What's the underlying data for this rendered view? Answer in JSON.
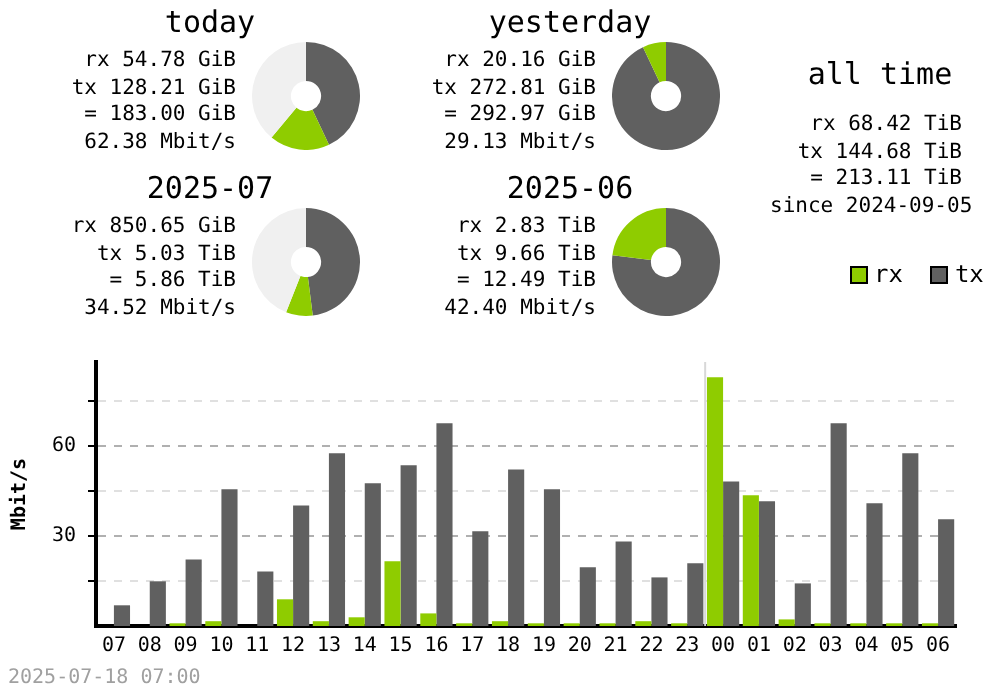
{
  "chart_data": [
    {
      "type": "donut",
      "title": "today",
      "categories": [
        null,
        null,
        null
      ],
      "values": [
        43,
        18,
        39
      ],
      "colors": [
        "#606060",
        "#8fcc00",
        "#f0f0f0"
      ],
      "annotations": [
        "rx 54.78 GiB",
        "tx 128.21 GiB",
        "= 183.00 GiB",
        "62.38 Mbit/s"
      ]
    },
    {
      "type": "donut",
      "title": "yesterday",
      "categories": [
        null,
        null
      ],
      "values": [
        93,
        7
      ],
      "colors": [
        "#606060",
        "#8fcc00"
      ],
      "annotations": [
        "rx 20.16 GiB",
        "tx 272.81 GiB",
        "= 292.97 GiB",
        "29.13 Mbit/s"
      ]
    },
    {
      "type": "other",
      "title": "all time",
      "annotations": [
        "rx 68.42 TiB",
        "tx 144.68 TiB",
        "= 213.11 TiB",
        "since 2024-09-05"
      ]
    },
    {
      "type": "donut",
      "title": "2025-07",
      "categories": [
        null,
        null,
        null
      ],
      "values": [
        48,
        8,
        44
      ],
      "colors": [
        "#606060",
        "#8fcc00",
        "#f0f0f0"
      ],
      "annotations": [
        "rx 850.65 GiB",
        "tx 5.03 TiB",
        "= 5.86 TiB",
        "34.52 Mbit/s"
      ]
    },
    {
      "type": "donut",
      "title": "2025-06",
      "categories": [
        null,
        null
      ],
      "values": [
        77,
        23
      ],
      "colors": [
        "#606060",
        "#8fcc00"
      ],
      "annotations": [
        "rx 2.83 TiB",
        "tx 9.66 TiB",
        "= 12.49 TiB",
        "42.40 Mbit/s"
      ]
    },
    {
      "type": "bar",
      "ylabel": "Mbit/s",
      "categories": [
        "07",
        "08",
        "09",
        "10",
        "11",
        "12",
        "13",
        "14",
        "15",
        "16",
        "17",
        "18",
        "19",
        "20",
        "21",
        "22",
        "23",
        "00",
        "01",
        "02",
        "03",
        "04",
        "05",
        "06"
      ],
      "series": [
        {
          "name": "rx",
          "color": "#8fcc00",
          "values": [
            0,
            0,
            0.9,
            1.6,
            0,
            8.9,
            1.6,
            2.9,
            21.6,
            4.2,
            0.9,
            1.6,
            0.9,
            0.9,
            0.9,
            1.6,
            0.9,
            82.9,
            43.6,
            2.2,
            0.9,
            0.9,
            0.9,
            0.9
          ]
        },
        {
          "name": "tx",
          "color": "#606060",
          "values": [
            6.9,
            14.9,
            22.2,
            45.6,
            18.2,
            40.2,
            57.6,
            47.6,
            53.6,
            67.6,
            31.6,
            52.2,
            45.6,
            19.6,
            28.2,
            16.2,
            20.9,
            48.2,
            41.6,
            14.2,
            67.6,
            40.9,
            57.6,
            35.6
          ]
        }
      ],
      "ylim": [
        0,
        88
      ],
      "yticks": [
        {
          "value": 0,
          "label": null
        },
        {
          "value": 15,
          "label": null
        },
        30,
        {
          "value": 45,
          "label": null
        },
        60,
        {
          "value": 75,
          "label": null
        }
      ],
      "grid": "y",
      "legend": "top right",
      "ref_lines": [
        {
          "axis": "x",
          "value": "00",
          "color": "#d8d8d8"
        }
      ],
      "annotations": [
        "2025-07-18 07:00"
      ]
    }
  ]
}
